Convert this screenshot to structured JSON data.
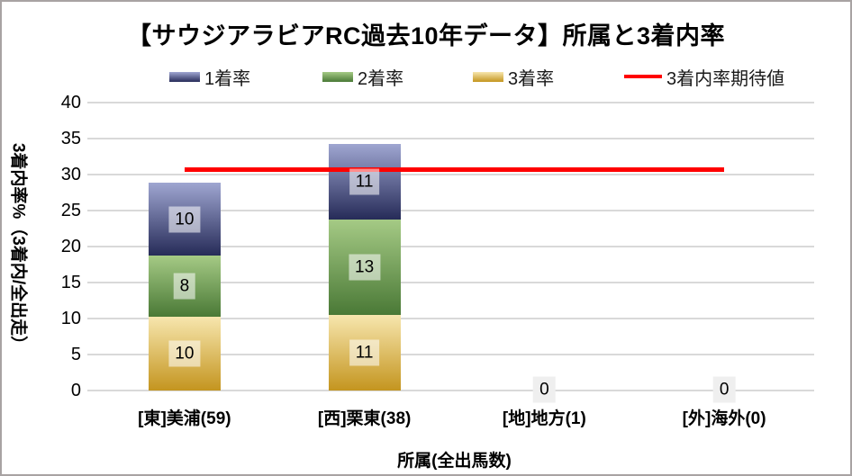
{
  "title": "【サウジアラビアRC過去10年データ】所属と3着内率",
  "legend": {
    "items": [
      {
        "label": "1着率",
        "type": "box",
        "color_top": "#9fa6d1",
        "color_bottom": "#262b58"
      },
      {
        "label": "2着率",
        "type": "box",
        "color_top": "#a5ca85",
        "color_bottom": "#4a7936"
      },
      {
        "label": "3着率",
        "type": "box",
        "color_top": "#f7e6ae",
        "color_bottom": "#c4951f"
      },
      {
        "label": "3着内率期待値",
        "type": "line",
        "color": "#ff0000"
      }
    ]
  },
  "chart_data": {
    "type": "bar",
    "subtype": "stacked-bar-with-expected-line",
    "title": "【サウジアラビアRC過去10年データ】所属と3着内率",
    "xlabel": "所属(全出馬数)",
    "ylabel": "3着内率%（3着内/全出走）",
    "ylim": [
      0,
      40
    ],
    "yticks": [
      0,
      5,
      10,
      15,
      20,
      25,
      30,
      35,
      40
    ],
    "grid": true,
    "gridline_color": "#d9d9d9",
    "legend_position": "top",
    "categories": [
      "[東]美浦(59)",
      "[西]栗東(38)",
      "[地]地方(1)",
      "[外]海外(0)"
    ],
    "stack_order_bottom_to_top": [
      "3着率",
      "2着率",
      "1着率"
    ],
    "series": [
      {
        "name": "1着率",
        "color_top": "#9fa6d1",
        "color_bottom": "#262b58",
        "values": [
          10.2,
          10.5,
          0,
          0
        ],
        "labels": [
          "10",
          "11",
          "",
          ""
        ]
      },
      {
        "name": "2着率",
        "color_top": "#a5ca85",
        "color_bottom": "#4a7936",
        "values": [
          8.5,
          13.2,
          0,
          0
        ],
        "labels": [
          "8",
          "13",
          "",
          ""
        ]
      },
      {
        "name": "3着率",
        "color_top": "#f7e6ae",
        "color_bottom": "#c4951f",
        "values": [
          10.2,
          10.5,
          0,
          0
        ],
        "labels": [
          "10",
          "11",
          "",
          ""
        ]
      }
    ],
    "zero_labels": [
      {
        "category_index": 2,
        "label": "0"
      },
      {
        "category_index": 3,
        "label": "0"
      }
    ],
    "expected_line": {
      "name": "3着内率期待値",
      "value": 30.8,
      "color": "#ff0000",
      "from_category": 0,
      "to_category": 3
    }
  }
}
